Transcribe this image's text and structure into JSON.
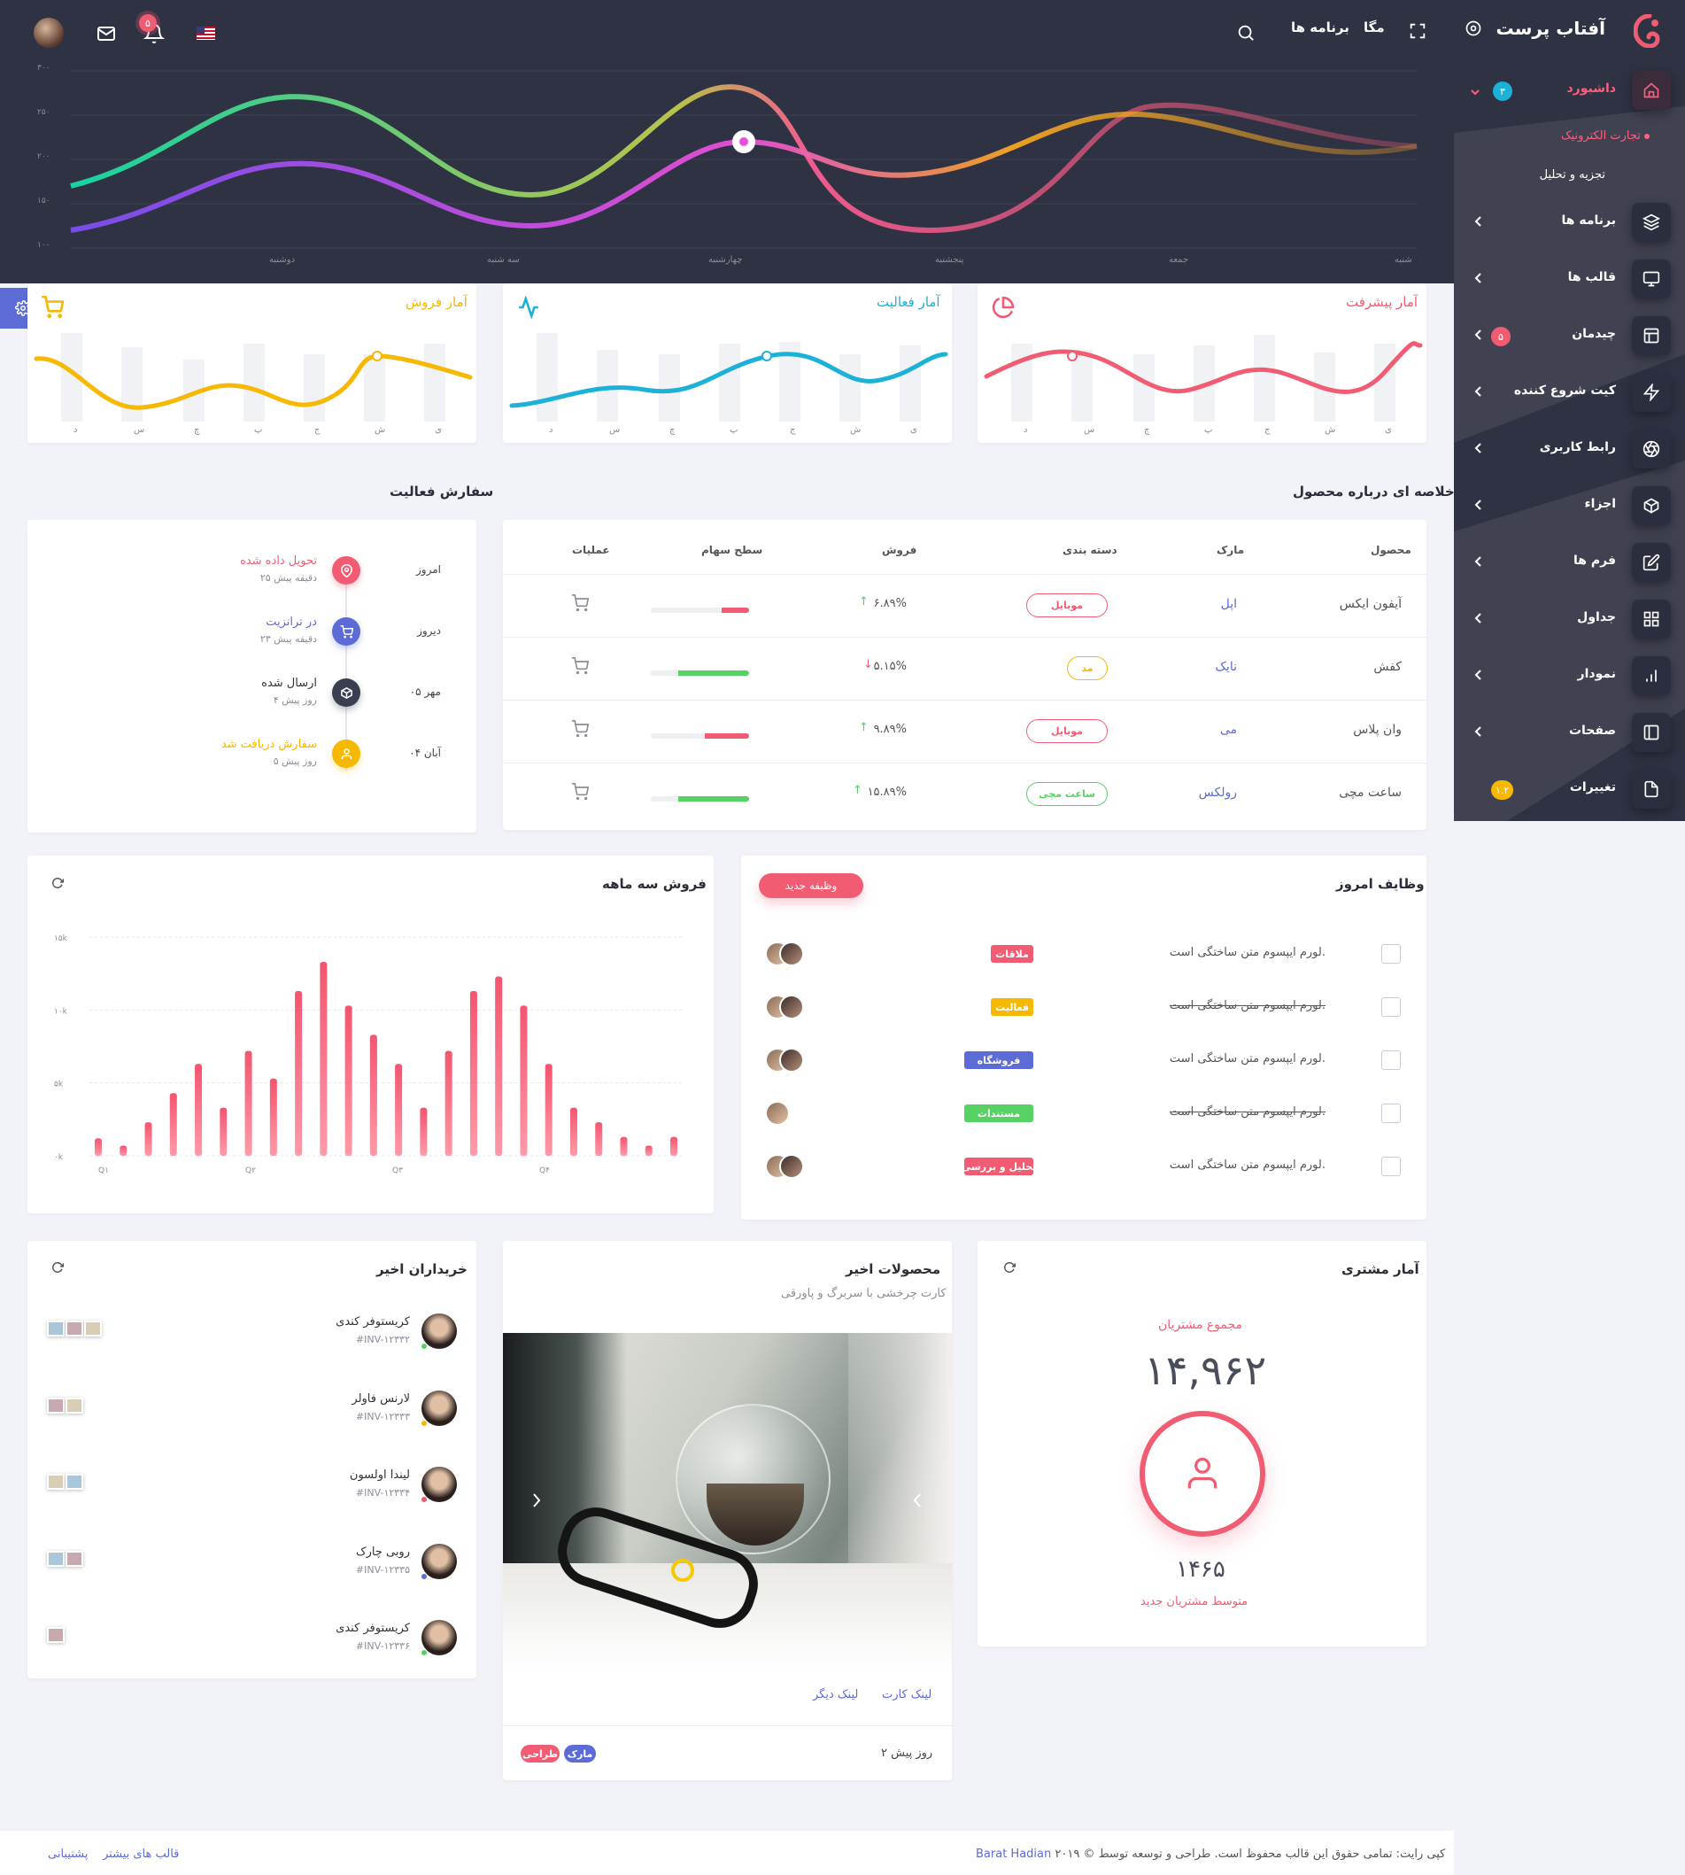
{
  "brand": {
    "name": "آفتاب پرست"
  },
  "sidebar": {
    "dashboard": {
      "label": "داشبورد",
      "badge": "۳"
    },
    "subitems": [
      "تجارت الکترونیک",
      "تجزیه و تحلیل"
    ],
    "items": [
      {
        "label": "برنامه ها",
        "icon": "layers-icon"
      },
      {
        "label": "قالب ها",
        "icon": "monitor-icon"
      },
      {
        "label": "چیدمان",
        "icon": "layout-icon",
        "badge": "۵"
      },
      {
        "label": "کیت شروع کننده",
        "icon": "zap-icon"
      },
      {
        "label": "رابط کاربری",
        "icon": "aperture-icon"
      },
      {
        "label": "اجزاء",
        "icon": "box-icon"
      },
      {
        "label": "فرم ها",
        "icon": "edit-icon"
      },
      {
        "label": "جداول",
        "icon": "grid-icon"
      },
      {
        "label": "نمودار",
        "icon": "bar-chart-icon"
      },
      {
        "label": "صفحات",
        "icon": "sidebar-icon"
      },
      {
        "label": "تغییرات",
        "icon": "file-icon",
        "badge": "۱.۲"
      }
    ]
  },
  "header": {
    "links": [
      "برنامه ها",
      "مگا"
    ],
    "notification_count": "۵"
  },
  "hero_chart": {
    "y_ticks": [
      "۳۰۰",
      "۲۵۰",
      "۲۰۰",
      "۱۵۰",
      "۱۰۰"
    ],
    "x_labels": [
      "شنبه",
      "جمعه",
      "پنجشنبه",
      "چهارشنبه",
      "سه شنبه",
      "دوشنبه"
    ]
  },
  "stat_cards": [
    {
      "title": "آمار پیشرفت",
      "color": "#f25c73",
      "icon": "pie-chart-icon"
    },
    {
      "title": "آمار فعالیت",
      "color": "#1cb1d6",
      "icon": "activity-icon"
    },
    {
      "title": "آمار فروش",
      "color": "#f6b800",
      "icon": "cart-icon"
    }
  ],
  "weekday_labels": [
    "ی",
    "ش",
    "ج",
    "پ",
    "چ",
    "س",
    "د"
  ],
  "product_summary": {
    "title": "خلاصه ای درباره محصول",
    "columns": [
      "محصول",
      "مارک",
      "دسته بندی",
      "فروش",
      "سطح سهام",
      "عملیات"
    ],
    "rows": [
      {
        "product": "آیفون ایکس",
        "brand": "اپل",
        "category": "موبایل",
        "cat_color": "#f25c73",
        "sales": "۶.۸۹%",
        "trend": "up",
        "stock_color": "#f25c73",
        "stock": 0.28
      },
      {
        "product": "کفش",
        "brand": "نایک",
        "category": "مد",
        "cat_color": "#f6b800",
        "sales": "۵.۱۵%",
        "trend": "down",
        "stock_color": "#56d264",
        "stock": 0.72
      },
      {
        "product": "وان پلاس",
        "brand": "می",
        "category": "موبایل",
        "cat_color": "#f25c73",
        "sales": "۹.۸۹%",
        "trend": "up",
        "stock_color": "#f25c73",
        "stock": 0.45
      },
      {
        "product": "ساعت مچی",
        "brand": "رولکس",
        "category": "ساعت مچی",
        "cat_color": "#56d264",
        "sales": "۱۵.۸۹%",
        "trend": "up",
        "stock_color": "#56d264",
        "stock": 0.72
      }
    ]
  },
  "order_activity": {
    "title": "سفارش فعالیت",
    "items": [
      {
        "day": "امروز",
        "title": "تحویل داده شده",
        "time": "۲۵ دقیقه پیش",
        "color": "#f25c73",
        "icon": "map-pin-icon"
      },
      {
        "day": "دیروز",
        "title": "در ترانزیت",
        "time": "۲۳ دقیقه پیش",
        "color": "#5c6bd6",
        "icon": "cart-icon"
      },
      {
        "day": "۰۵ مهر",
        "title": "ارسال شده",
        "time": "۴ روز پیش",
        "color": "#3b3e50",
        "icon": "box-icon"
      },
      {
        "day": "۰۴ آبان",
        "title": "سفارش دریافت شد",
        "time": "۵ روز پیش",
        "color": "#f6b800",
        "icon": "user-icon"
      }
    ]
  },
  "today_tasks": {
    "title": "وظایف امروز",
    "new_button": "وظیفه جدید",
    "items": [
      {
        "text": "لورم ایپسوم متن ساختگی است.",
        "done": false,
        "tag": "ملاقات",
        "tag_color": "#f25c73",
        "avatars": 2
      },
      {
        "text": "لورم ایپسوم متن ساختگی است.",
        "done": true,
        "tag": "فعالیت",
        "tag_color": "#f6b800",
        "avatars": 2
      },
      {
        "text": "لورم ایپسوم متن ساختگی است.",
        "done": false,
        "tag": "فروشگاه",
        "tag_color": "#5c6bd6",
        "avatars": 2
      },
      {
        "text": "لورم ایپسوم متن ساختگی است.",
        "done": true,
        "tag": "مستندات",
        "tag_color": "#56d264",
        "avatars": 1
      },
      {
        "text": "لورم ایپسوم متن ساختگی است.",
        "done": false,
        "tag": "تحلیل و بررسی",
        "tag_color": "#f25c73",
        "avatars": 2
      }
    ]
  },
  "chart_data": {
    "type": "bar",
    "title": "فروش سه ماهه",
    "y_ticks": [
      "۱۵k",
      "۱۰k",
      "۵k",
      "۰k"
    ],
    "ylim": [
      0,
      15000
    ],
    "x_ticks": [
      "Q۱",
      "Q۲",
      "Q۳",
      "Q۴"
    ],
    "values": [
      1200,
      700,
      2300,
      4300,
      6300,
      3300,
      7200,
      5300,
      11300,
      13300,
      10300,
      8300,
      6300,
      3300,
      7200,
      11300,
      12300,
      10300,
      6300,
      3300,
      2300,
      1300,
      700,
      1300
    ],
    "color": "#f46d85",
    "grid": true
  },
  "customer_stats": {
    "title": "آمار مشتری",
    "total_label": "مجموع مشتریان",
    "total": "۱۴,۹۶۲",
    "avg_value": "۱۴۶۵",
    "avg_label": "متوسط مشتریان جدید"
  },
  "recent_products": {
    "title": "محصولات اخیر",
    "subtitle": "کارت چرخشی با سربرگ و پاورقی",
    "links": [
      "لینک کارت",
      "لینک دیگر"
    ],
    "time": "۲ روز پیش",
    "tags": [
      "مارک",
      "طراحی"
    ]
  },
  "recent_buyers": {
    "title": "خریداران اخیر",
    "items": [
      {
        "name": "کریستوفر کندی",
        "invoice": "#INV-۱۲۳۳۲",
        "status": "#56d264",
        "thumbs": 3
      },
      {
        "name": "لارنس فاولر",
        "invoice": "#INV-۱۲۳۳۳",
        "status": "#f6b800",
        "thumbs": 2
      },
      {
        "name": "لیندا اولسون",
        "invoice": "#INV-۱۲۳۳۴",
        "status": "#f25c73",
        "thumbs": 2
      },
      {
        "name": "روبی چارک",
        "invoice": "#INV-۱۲۳۳۵",
        "status": "#5c6bd6",
        "thumbs": 2
      },
      {
        "name": "کریستوفر کندی",
        "invoice": "#INV-۱۲۳۳۶",
        "status": "#56d264",
        "thumbs": 1
      }
    ]
  },
  "footer": {
    "copyright": "۲۰۱۹ © کپی رایت: تمامی حقوق این قالب محفوظ است. طراحی و توسعه توسط",
    "author": "Barat Hadian",
    "links": [
      "پشتیبانی",
      "قالب های بیشتر"
    ]
  }
}
